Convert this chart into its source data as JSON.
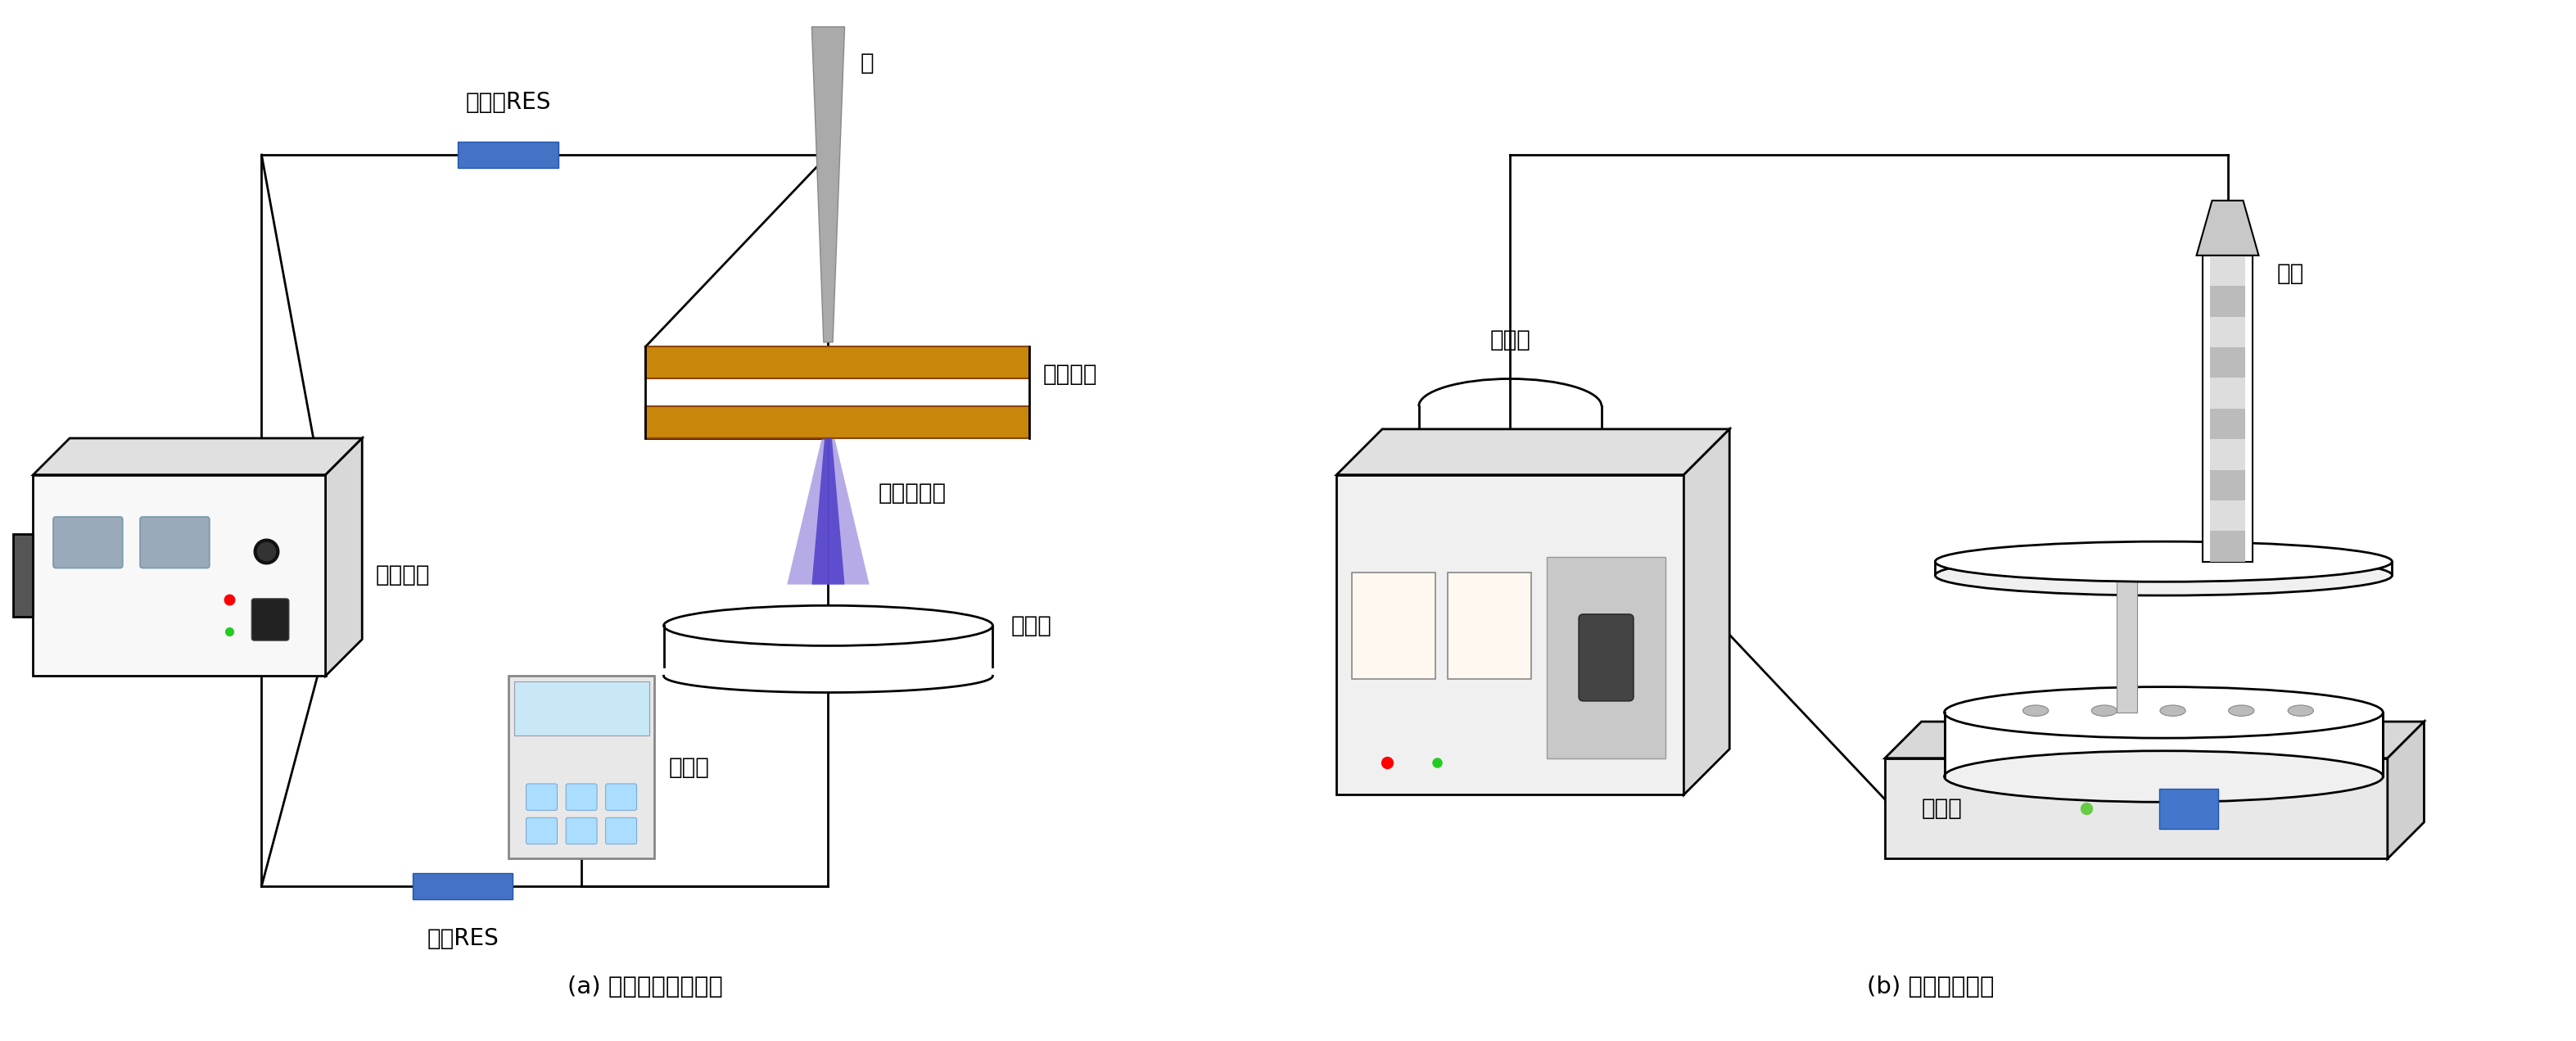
{
  "title_a": "(a) 辉光放电等离子体",
  "title_b": "(b) 光化学反应仪",
  "label_zhenliuqi": "镇流器RES",
  "label_jianyan": "检验RES",
  "label_wenyuanbiao": "万用表",
  "label_weidianyangyuan": "稳电压源",
  "label_zhen": "针",
  "label_yinjixunhuan": "阴极循环",
  "label_denglizisheliu": "等离子射流",
  "label_fanyingqi_a": "反应器",
  "label_kongzhiqi": "控制器",
  "label_xideng": "氙灯",
  "label_fanyingqi_b": "反应器",
  "bg_color": "#ffffff",
  "line_color": "#000000",
  "res_color": "#4472c4",
  "electrode_color": "#c8860a",
  "electrode_edge": "#8b4500",
  "jet_color_outer": "#7b68ee",
  "jet_color_inner": "#5533aa",
  "needle_color": "#aaaaaa",
  "device_fill": "#f5f5f5",
  "device_border": "#000000",
  "display_color": "#9aaabb",
  "text_color": "#000000",
  "font_size": 20
}
